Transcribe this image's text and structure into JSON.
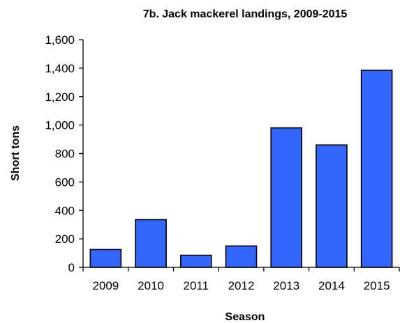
{
  "chart_data": {
    "type": "bar",
    "title": "7b. Jack mackerel landings, 2009-2015",
    "xlabel": "Season",
    "ylabel": "Short tons",
    "categories": [
      "2009",
      "2010",
      "2011",
      "2012",
      "2013",
      "2014",
      "2015"
    ],
    "values": [
      125,
      335,
      85,
      150,
      980,
      860,
      1385
    ],
    "ylim": [
      0,
      1600
    ],
    "yticks": [
      0,
      200,
      400,
      600,
      800,
      1000,
      1200,
      1400,
      1600
    ],
    "ytick_labels": [
      "0",
      "200",
      "400",
      "600",
      "800",
      "1,000",
      "1,200",
      "1,400",
      "1,600"
    ],
    "grid": false,
    "legend": "none",
    "bar_color": "#3366FF",
    "bar_edge_color": "#000000"
  }
}
